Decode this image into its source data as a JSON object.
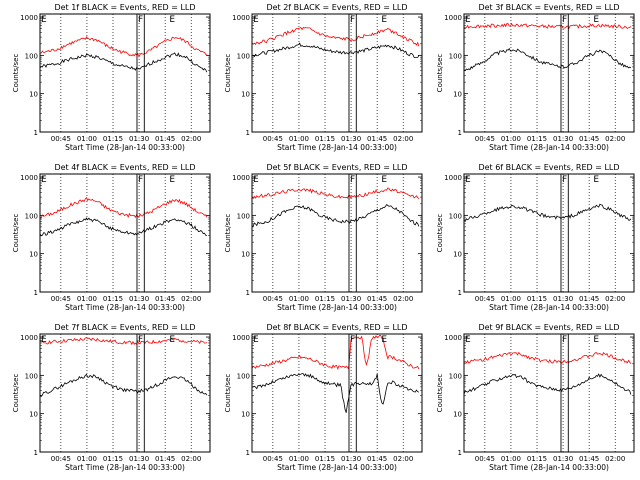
{
  "figure": {
    "x_ticks": [
      "00:45",
      "01:00",
      "01:15",
      "01:30",
      "01:45",
      "02:00"
    ],
    "y_ticks": [
      "1",
      "10",
      "100",
      "1000"
    ],
    "xlabel": "Start Time (28-Jan-14 00:33:00)",
    "ylabel": "Counts/sec",
    "colors": {
      "events": "#000000",
      "lld": "#ff0000",
      "axes": "#000000"
    }
  },
  "chart_data": [
    {
      "type": "line",
      "title": "Det 1f BLACK = Events, RED = LLD",
      "xlabel": "Start Time (28-Jan-14 00:33:00)",
      "ylabel": "Counts/sec",
      "yscale": "log",
      "ylim": [
        1,
        1200
      ],
      "xlim": [
        0.55,
        2.18
      ],
      "x_ticks": [
        "00:45",
        "01:00",
        "01:15",
        "01:30",
        "01:45",
        "02:00"
      ],
      "y_ticks": [
        "1",
        "10",
        "100",
        "1000"
      ],
      "markers": [
        {
          "label": "E",
          "x": 0.56
        },
        {
          "label": "F",
          "x": 1.49
        },
        {
          "label": "E",
          "x": 1.79
        }
      ],
      "event_lines": [
        1.48,
        1.55
      ],
      "series": [
        {
          "name": "Events",
          "color": "#000000",
          "x": [
            0.55,
            0.7,
            0.85,
            1.0,
            1.1,
            1.2,
            1.3,
            1.4,
            1.5,
            1.6,
            1.75,
            1.85,
            1.95,
            2.05,
            2.15
          ],
          "y": [
            50,
            60,
            80,
            100,
            90,
            68,
            55,
            48,
            42,
            60,
            90,
            110,
            90,
            55,
            38
          ]
        },
        {
          "name": "LLD",
          "color": "#ff0000",
          "x": [
            0.55,
            0.7,
            0.85,
            1.0,
            1.1,
            1.2,
            1.3,
            1.4,
            1.5,
            1.6,
            1.75,
            1.85,
            1.95,
            2.05,
            2.15
          ],
          "y": [
            115,
            140,
            210,
            280,
            250,
            170,
            130,
            110,
            100,
            130,
            230,
            300,
            230,
            140,
            105
          ]
        }
      ]
    },
    {
      "type": "line",
      "title": "Det 2f BLACK = Events, RED = LLD",
      "xlabel": "Start Time (28-Jan-14 00:33:00)",
      "ylabel": "Counts/sec",
      "yscale": "log",
      "ylim": [
        1,
        1200
      ],
      "xlim": [
        0.55,
        2.18
      ],
      "x_ticks": [
        "00:45",
        "01:00",
        "01:15",
        "01:30",
        "01:45",
        "02:00"
      ],
      "y_ticks": [
        "1",
        "10",
        "100",
        "1000"
      ],
      "markers": [
        {
          "label": "E",
          "x": 0.56
        },
        {
          "label": "F",
          "x": 1.49
        },
        {
          "label": "E",
          "x": 1.79
        }
      ],
      "event_lines": [
        1.48,
        1.55
      ],
      "series": [
        {
          "name": "Events",
          "color": "#000000",
          "x": [
            0.55,
            0.7,
            0.85,
            1.0,
            1.1,
            1.2,
            1.3,
            1.4,
            1.5,
            1.6,
            1.75,
            1.85,
            1.95,
            2.05,
            2.15
          ],
          "y": [
            100,
            120,
            150,
            190,
            180,
            150,
            130,
            120,
            120,
            130,
            160,
            185,
            150,
            110,
            90
          ]
        },
        {
          "name": "LLD",
          "color": "#ff0000",
          "x": [
            0.55,
            0.7,
            0.85,
            1.0,
            1.1,
            1.2,
            1.3,
            1.4,
            1.5,
            1.6,
            1.75,
            1.85,
            1.95,
            2.05,
            2.15
          ],
          "y": [
            200,
            240,
            350,
            500,
            480,
            360,
            290,
            270,
            260,
            300,
            400,
            480,
            370,
            250,
            190
          ]
        }
      ]
    },
    {
      "type": "line",
      "title": "Det 3f BLACK = Events, RED = LLD",
      "xlabel": "Start Time (28-Jan-14 00:33:00)",
      "ylabel": "Counts/sec",
      "yscale": "log",
      "ylim": [
        1,
        1200
      ],
      "xlim": [
        0.55,
        2.18
      ],
      "x_ticks": [
        "00:45",
        "01:00",
        "01:15",
        "01:30",
        "01:45",
        "02:00"
      ],
      "y_ticks": [
        "1",
        "10",
        "100",
        "1000"
      ],
      "markers": [
        {
          "label": "E",
          "x": 0.56
        },
        {
          "label": "F",
          "x": 1.49
        },
        {
          "label": "E",
          "x": 1.79
        }
      ],
      "event_lines": [
        1.48,
        1.55
      ],
      "series": [
        {
          "name": "Events",
          "color": "#000000",
          "x": [
            0.55,
            0.7,
            0.85,
            1.0,
            1.1,
            1.2,
            1.3,
            1.4,
            1.5,
            1.6,
            1.75,
            1.85,
            1.95,
            2.05,
            2.15
          ],
          "y": [
            40,
            60,
            110,
            140,
            130,
            90,
            65,
            55,
            50,
            60,
            100,
            130,
            100,
            60,
            45
          ]
        },
        {
          "name": "LLD",
          "color": "#ff0000",
          "x": [
            0.55,
            0.7,
            0.85,
            1.0,
            1.1,
            1.2,
            1.3,
            1.4,
            1.5,
            1.6,
            1.75,
            1.85,
            1.95,
            2.05,
            2.15
          ],
          "y": [
            560,
            580,
            600,
            620,
            610,
            590,
            570,
            560,
            550,
            560,
            590,
            600,
            580,
            560,
            540
          ]
        }
      ]
    },
    {
      "type": "line",
      "title": "Det 4f BLACK = Events, RED = LLD",
      "xlabel": "Start Time (28-Jan-14 00:33:00)",
      "ylabel": "Counts/sec",
      "yscale": "log",
      "ylim": [
        1,
        1200
      ],
      "xlim": [
        0.55,
        2.18
      ],
      "x_ticks": [
        "00:45",
        "01:00",
        "01:15",
        "01:30",
        "01:45",
        "02:00"
      ],
      "y_ticks": [
        "1",
        "10",
        "100",
        "1000"
      ],
      "markers": [
        {
          "label": "E",
          "x": 0.56
        },
        {
          "label": "F",
          "x": 1.49
        },
        {
          "label": "E",
          "x": 1.79
        }
      ],
      "event_lines": [
        1.48,
        1.55
      ],
      "series": [
        {
          "name": "Events",
          "color": "#000000",
          "x": [
            0.55,
            0.7,
            0.85,
            1.0,
            1.1,
            1.2,
            1.3,
            1.4,
            1.5,
            1.6,
            1.75,
            1.85,
            1.95,
            2.05,
            2.15
          ],
          "y": [
            30,
            40,
            60,
            80,
            70,
            50,
            40,
            35,
            33,
            45,
            65,
            80,
            65,
            45,
            30
          ]
        },
        {
          "name": "LLD",
          "color": "#ff0000",
          "x": [
            0.55,
            0.7,
            0.85,
            1.0,
            1.1,
            1.2,
            1.3,
            1.4,
            1.5,
            1.6,
            1.75,
            1.85,
            1.95,
            2.05,
            2.15
          ],
          "y": [
            90,
            120,
            190,
            270,
            230,
            150,
            115,
            100,
            95,
            120,
            200,
            260,
            200,
            130,
            90
          ]
        }
      ]
    },
    {
      "type": "line",
      "title": "Det 5f BLACK = Events, RED = LLD",
      "xlabel": "Start Time (28-Jan-14 00:33:00)",
      "ylabel": "Counts/sec",
      "yscale": "log",
      "ylim": [
        1,
        1200
      ],
      "xlim": [
        0.55,
        2.18
      ],
      "x_ticks": [
        "00:45",
        "01:00",
        "01:15",
        "01:30",
        "01:45",
        "02:00"
      ],
      "y_ticks": [
        "1",
        "10",
        "100",
        "1000"
      ],
      "markers": [
        {
          "label": "E",
          "x": 0.56
        },
        {
          "label": "F",
          "x": 1.49
        },
        {
          "label": "E",
          "x": 1.79
        }
      ],
      "event_lines": [
        1.48,
        1.55
      ],
      "series": [
        {
          "name": "Events",
          "color": "#000000",
          "x": [
            0.55,
            0.7,
            0.85,
            1.0,
            1.1,
            1.2,
            1.3,
            1.4,
            1.5,
            1.6,
            1.75,
            1.85,
            1.95,
            2.05,
            2.15
          ],
          "y": [
            55,
            70,
            120,
            170,
            150,
            100,
            80,
            70,
            70,
            85,
            140,
            180,
            140,
            80,
            55
          ]
        },
        {
          "name": "LLD",
          "color": "#ff0000",
          "x": [
            0.55,
            0.7,
            0.85,
            1.0,
            1.1,
            1.2,
            1.3,
            1.4,
            1.5,
            1.6,
            1.75,
            1.85,
            1.95,
            2.05,
            2.15
          ],
          "y": [
            300,
            330,
            410,
            480,
            450,
            380,
            330,
            300,
            300,
            330,
            420,
            480,
            420,
            330,
            290
          ]
        }
      ]
    },
    {
      "type": "line",
      "title": "Det 6f BLACK = Events, RED = LLD",
      "xlabel": "Start Time (28-Jan-14 00:33:00)",
      "ylabel": "Counts/sec",
      "yscale": "log",
      "ylim": [
        1,
        1200
      ],
      "xlim": [
        0.55,
        2.18
      ],
      "x_ticks": [
        "00:45",
        "01:00",
        "01:15",
        "01:30",
        "01:45",
        "02:00"
      ],
      "y_ticks": [
        "1",
        "10",
        "100",
        "1000"
      ],
      "markers": [
        {
          "label": "E",
          "x": 0.56
        },
        {
          "label": "F",
          "x": 1.49
        },
        {
          "label": "E",
          "x": 1.79
        }
      ],
      "event_lines": [
        1.48,
        1.55
      ],
      "series": [
        {
          "name": "Events",
          "color": "#000000",
          "x": [
            0.55,
            0.7,
            0.85,
            1.0,
            1.1,
            1.2,
            1.3,
            1.4,
            1.5,
            1.6,
            1.75,
            1.85,
            1.95,
            2.05,
            2.15
          ],
          "y": [
            75,
            100,
            140,
            175,
            160,
            125,
            100,
            90,
            85,
            100,
            145,
            180,
            145,
            100,
            75
          ]
        }
      ]
    },
    {
      "type": "line",
      "title": "Det 7f BLACK = Events, RED = LLD",
      "xlabel": "Start Time (28-Jan-14 00:33:00)",
      "ylabel": "Counts/sec",
      "yscale": "log",
      "ylim": [
        1,
        1200
      ],
      "xlim": [
        0.55,
        2.18
      ],
      "x_ticks": [
        "00:45",
        "01:00",
        "01:15",
        "01:30",
        "01:45",
        "02:00"
      ],
      "y_ticks": [
        "1",
        "10",
        "100",
        "1000"
      ],
      "markers": [
        {
          "label": "E",
          "x": 0.56
        },
        {
          "label": "F",
          "x": 1.49
        },
        {
          "label": "E",
          "x": 1.79
        }
      ],
      "event_lines": [
        1.48,
        1.55
      ],
      "series": [
        {
          "name": "Events",
          "color": "#000000",
          "x": [
            0.55,
            0.7,
            0.85,
            1.0,
            1.1,
            1.2,
            1.3,
            1.4,
            1.5,
            1.6,
            1.75,
            1.85,
            1.95,
            2.05,
            2.15
          ],
          "y": [
            30,
            45,
            70,
            100,
            90,
            60,
            45,
            40,
            38,
            45,
            75,
            95,
            75,
            45,
            30
          ]
        },
        {
          "name": "LLD",
          "color": "#ff0000",
          "x": [
            0.55,
            0.7,
            0.85,
            1.0,
            1.1,
            1.2,
            1.3,
            1.4,
            1.5,
            1.6,
            1.75,
            1.85,
            1.95,
            2.05,
            2.15
          ],
          "y": [
            700,
            760,
            820,
            880,
            850,
            780,
            740,
            720,
            700,
            720,
            800,
            860,
            800,
            740,
            700
          ]
        }
      ]
    },
    {
      "type": "line",
      "title": "Det 8f BLACK = Events, RED = LLD",
      "xlabel": "Start Time (28-Jan-14 00:33:00)",
      "ylabel": "Counts/sec",
      "yscale": "log",
      "ylim": [
        1,
        1200
      ],
      "xlim": [
        0.55,
        2.18
      ],
      "x_ticks": [
        "00:45",
        "01:00",
        "01:15",
        "01:30",
        "01:45",
        "02:00"
      ],
      "y_ticks": [
        "1",
        "10",
        "100",
        "1000"
      ],
      "markers": [
        {
          "label": "E",
          "x": 0.56
        },
        {
          "label": "F",
          "x": 1.49
        },
        {
          "label": "E",
          "x": 1.79
        }
      ],
      "event_lines": [
        1.48,
        1.55
      ],
      "series": [
        {
          "name": "Events",
          "color": "#000000",
          "x": [
            0.55,
            0.7,
            0.85,
            1.0,
            1.1,
            1.2,
            1.3,
            1.4,
            1.45,
            1.5,
            1.55,
            1.6,
            1.7,
            1.75,
            1.8,
            1.85,
            1.9,
            1.95,
            2.05,
            2.15
          ],
          "y": [
            45,
            60,
            85,
            110,
            100,
            70,
            60,
            55,
            10,
            55,
            60,
            65,
            60,
            100,
            15,
            60,
            70,
            55,
            45,
            38
          ]
        },
        {
          "name": "LLD",
          "color": "#ff0000",
          "x": [
            0.55,
            0.7,
            0.85,
            1.0,
            1.1,
            1.2,
            1.3,
            1.4,
            1.48,
            1.5,
            1.6,
            1.65,
            1.7,
            1.75,
            1.8,
            1.85,
            1.9,
            1.95,
            2.05,
            2.15
          ],
          "y": [
            160,
            190,
            240,
            300,
            270,
            210,
            170,
            160,
            160,
            1000,
            1000,
            160,
            1000,
            1000,
            1000,
            300,
            300,
            260,
            190,
            150
          ]
        }
      ]
    },
    {
      "type": "line",
      "title": "Det 9f BLACK = Events, RED = LLD",
      "xlabel": "Start Time (28-Jan-14 00:33:00)",
      "ylabel": "Counts/sec",
      "yscale": "log",
      "ylim": [
        1,
        1200
      ],
      "xlim": [
        0.55,
        2.18
      ],
      "x_ticks": [
        "00:45",
        "01:00",
        "01:15",
        "01:30",
        "01:45",
        "02:00"
      ],
      "y_ticks": [
        "1",
        "10",
        "100",
        "1000"
      ],
      "markers": [
        {
          "label": "E",
          "x": 0.56
        },
        {
          "label": "F",
          "x": 1.49
        },
        {
          "label": "E",
          "x": 1.79
        }
      ],
      "event_lines": [
        1.48,
        1.55
      ],
      "series": [
        {
          "name": "Events",
          "color": "#000000",
          "x": [
            0.55,
            0.7,
            0.85,
            1.0,
            1.1,
            1.2,
            1.3,
            1.4,
            1.5,
            1.6,
            1.75,
            1.85,
            1.95,
            2.05,
            2.15
          ],
          "y": [
            35,
            50,
            75,
            100,
            90,
            60,
            50,
            45,
            42,
            50,
            80,
            100,
            80,
            50,
            35
          ]
        },
        {
          "name": "LLD",
          "color": "#ff0000",
          "x": [
            0.55,
            0.7,
            0.85,
            1.0,
            1.1,
            1.2,
            1.3,
            1.4,
            1.5,
            1.6,
            1.75,
            1.85,
            1.95,
            2.05,
            2.15
          ],
          "y": [
            220,
            250,
            300,
            380,
            350,
            280,
            240,
            230,
            230,
            250,
            320,
            380,
            320,
            250,
            220
          ]
        }
      ]
    }
  ]
}
